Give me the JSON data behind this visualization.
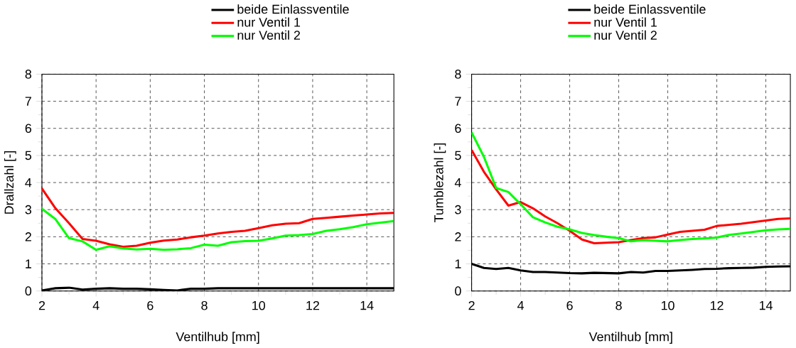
{
  "chart_data": [
    {
      "type": "line",
      "xlabel": "Ventilhub [mm]",
      "ylabel": "Drallzahl [-]",
      "x": [
        2,
        2.5,
        3,
        3.5,
        4,
        4.5,
        5,
        5.5,
        6,
        6.5,
        7,
        7.5,
        8,
        8.5,
        9,
        9.5,
        10,
        10.5,
        11,
        11.5,
        12,
        12.5,
        13,
        13.5,
        14,
        14.5,
        15
      ],
      "series": [
        {
          "name": "beide Einlassventile",
          "color": "#000000",
          "values": [
            0.02,
            0.1,
            0.12,
            0.05,
            0.08,
            0.1,
            0.08,
            0.08,
            0.06,
            0.04,
            0.02,
            0.08,
            0.08,
            0.1,
            0.1,
            0.1,
            0.1,
            0.1,
            0.1,
            0.1,
            0.1,
            0.1,
            0.1,
            0.1,
            0.1,
            0.1,
            0.1
          ]
        },
        {
          "name": "nur Ventil 1",
          "color": "#ff0000",
          "values": [
            3.78,
            3.05,
            2.5,
            1.92,
            1.85,
            1.72,
            1.63,
            1.67,
            1.78,
            1.86,
            1.9,
            1.98,
            2.04,
            2.12,
            2.18,
            2.22,
            2.32,
            2.42,
            2.48,
            2.5,
            2.66,
            2.7,
            2.74,
            2.78,
            2.82,
            2.86,
            2.88
          ]
        },
        {
          "name": "nur Ventil 2",
          "color": "#00ff00",
          "values": [
            3.03,
            2.65,
            1.95,
            1.83,
            1.52,
            1.65,
            1.57,
            1.53,
            1.56,
            1.52,
            1.54,
            1.58,
            1.71,
            1.67,
            1.8,
            1.84,
            1.85,
            1.94,
            2.04,
            2.06,
            2.1,
            2.22,
            2.28,
            2.36,
            2.46,
            2.52,
            2.58
          ]
        }
      ],
      "xlim": [
        2,
        15
      ],
      "ylim": [
        0,
        8
      ],
      "xticks": [
        2,
        4,
        6,
        8,
        10,
        12,
        14
      ],
      "yticks": [
        0,
        1,
        2,
        3,
        4,
        5,
        6,
        7,
        8
      ],
      "grid": true,
      "legend": "top",
      "line_style": "solid",
      "marker": "none"
    },
    {
      "type": "line",
      "xlabel": "Ventilhub [mm]",
      "ylabel": "Tumblezahl [-]",
      "x": [
        2,
        2.5,
        3,
        3.5,
        4,
        4.5,
        5,
        5.5,
        6,
        6.5,
        7,
        7.5,
        8,
        8.5,
        9,
        9.5,
        10,
        10.5,
        11,
        11.5,
        12,
        12.5,
        13,
        13.5,
        14,
        14.5,
        15
      ],
      "series": [
        {
          "name": "beide Einlassventile",
          "color": "#000000",
          "values": [
            1.0,
            0.85,
            0.81,
            0.85,
            0.76,
            0.7,
            0.7,
            0.68,
            0.66,
            0.65,
            0.67,
            0.66,
            0.65,
            0.7,
            0.68,
            0.74,
            0.74,
            0.76,
            0.78,
            0.81,
            0.82,
            0.84,
            0.85,
            0.86,
            0.89,
            0.9,
            0.91
          ]
        },
        {
          "name": "nur Ventil 1",
          "color": "#ff0000",
          "values": [
            5.2,
            4.4,
            3.75,
            3.15,
            3.28,
            3.05,
            2.75,
            2.5,
            2.22,
            1.9,
            1.76,
            1.78,
            1.8,
            1.88,
            1.95,
            1.98,
            2.08,
            2.18,
            2.22,
            2.26,
            2.4,
            2.44,
            2.48,
            2.54,
            2.6,
            2.66,
            2.68
          ]
        },
        {
          "name": "nur Ventil 2",
          "color": "#00ff00",
          "values": [
            5.85,
            4.95,
            3.8,
            3.65,
            3.2,
            2.72,
            2.53,
            2.37,
            2.27,
            2.14,
            2.06,
            2.0,
            1.95,
            1.83,
            1.88,
            1.85,
            1.83,
            1.88,
            1.92,
            1.94,
            1.97,
            2.07,
            2.12,
            2.18,
            2.24,
            2.27,
            2.29
          ]
        }
      ],
      "xlim": [
        2,
        15
      ],
      "ylim": [
        0,
        8
      ],
      "xticks": [
        2,
        4,
        6,
        8,
        10,
        12,
        14
      ],
      "yticks": [
        0,
        1,
        2,
        3,
        4,
        5,
        6,
        7,
        8
      ],
      "grid": true,
      "legend": "top",
      "line_style": "solid",
      "marker": "none"
    }
  ]
}
